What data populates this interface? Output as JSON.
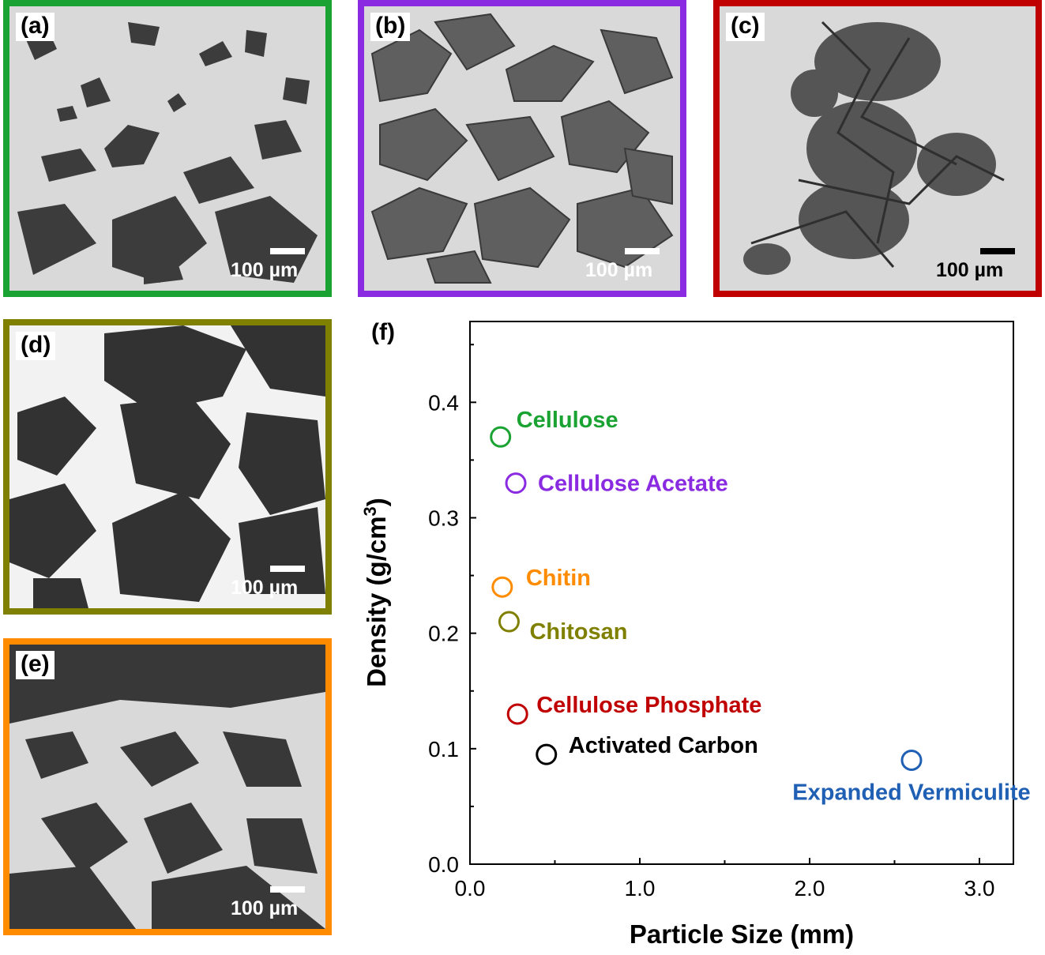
{
  "panels": [
    {
      "tag": "(a)",
      "scale": "100 µm",
      "border": "#1aa332",
      "bar": "#ffffff",
      "text": "#ffffff"
    },
    {
      "tag": "(b)",
      "scale": "100 µm",
      "border": "#8a2be2",
      "bar": "#ffffff",
      "text": "#ffffff"
    },
    {
      "tag": "(c)",
      "scale": "100 µm",
      "border": "#c00000",
      "bar": "#000000",
      "text": "#000000"
    },
    {
      "tag": "(d)",
      "scale": "100 µm",
      "border": "#808000",
      "bar": "#ffffff",
      "text": "#ffffff"
    },
    {
      "tag": "(e)",
      "scale": "100 µm",
      "border": "#ff8c00",
      "bar": "#ffffff",
      "text": "#ffffff"
    }
  ],
  "chart_data": {
    "panel_tag": "(f)",
    "type": "scatter",
    "xlabel": "Particle Size (mm)",
    "ylabel": "Density (g/cm",
    "ylabel_sup": "3",
    "ylabel_close": ")",
    "xlim": [
      0.0,
      3.2
    ],
    "ylim": [
      0.0,
      0.47
    ],
    "xticks": [
      "0.0",
      "1.0",
      "2.0",
      "3.0"
    ],
    "xtick_values": [
      0.0,
      1.0,
      2.0,
      3.0
    ],
    "yticks": [
      "0.0",
      "0.1",
      "0.2",
      "0.3",
      "0.4"
    ],
    "ytick_values": [
      0.0,
      0.1,
      0.2,
      0.3,
      0.4
    ],
    "grid": false,
    "points": [
      {
        "label": "Cellulose",
        "x": 0.18,
        "y": 0.37,
        "color": "#1aa332"
      },
      {
        "label": "Cellulose Acetate",
        "x": 0.27,
        "y": 0.33,
        "color": "#8a2be2"
      },
      {
        "label": "Chitin",
        "x": 0.19,
        "y": 0.24,
        "color": "#ff8c00"
      },
      {
        "label": "Chitosan",
        "x": 0.23,
        "y": 0.21,
        "color": "#808000"
      },
      {
        "label": "Cellulose Phosphate",
        "x": 0.28,
        "y": 0.13,
        "color": "#c00000"
      },
      {
        "label": "Activated Carbon",
        "x": 0.45,
        "y": 0.095,
        "color": "#000000"
      },
      {
        "label": "Expanded Vermiculite",
        "x": 2.6,
        "y": 0.09,
        "color": "#1f5fb4"
      }
    ]
  }
}
